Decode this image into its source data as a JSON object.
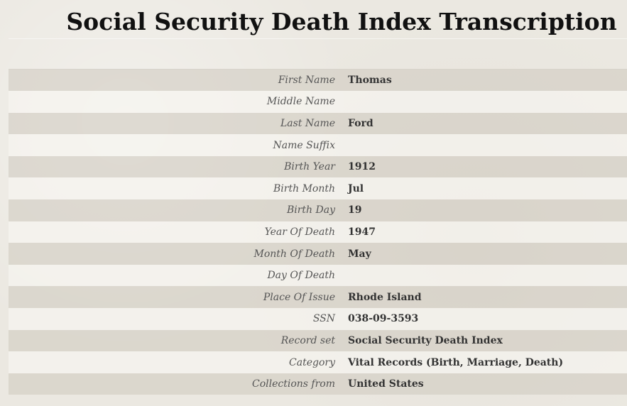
{
  "page": {
    "title": "Social Security Death Index Transcription"
  },
  "record": {
    "rows": [
      {
        "label": "First Name",
        "value": "Thomas"
      },
      {
        "label": "Middle Name",
        "value": ""
      },
      {
        "label": "Last Name",
        "value": "Ford"
      },
      {
        "label": "Name Suffix",
        "value": ""
      },
      {
        "label": "Birth Year",
        "value": "1912"
      },
      {
        "label": "Birth Month",
        "value": "Jul"
      },
      {
        "label": "Birth Day",
        "value": "19"
      },
      {
        "label": "Year Of Death",
        "value": "1947"
      },
      {
        "label": "Month Of Death",
        "value": "May"
      },
      {
        "label": "Day Of Death",
        "value": ""
      },
      {
        "label": "Place Of Issue",
        "value": "Rhode Island"
      },
      {
        "label": "SSN",
        "value": "038-09-3593"
      },
      {
        "label": "Record set",
        "value": "Social Security Death Index"
      },
      {
        "label": "Category",
        "value": "Vital Records (Birth, Marriage, Death)"
      },
      {
        "label": "Collections from",
        "value": "United States"
      }
    ]
  }
}
